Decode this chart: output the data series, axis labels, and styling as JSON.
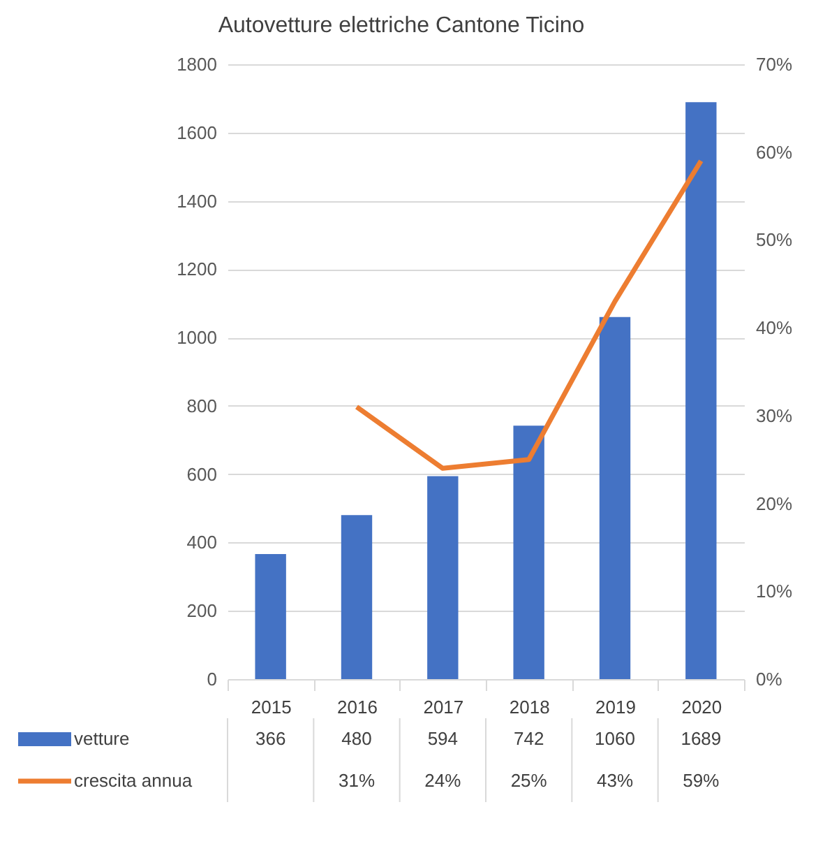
{
  "chart_data": {
    "type": "bar",
    "title": "Autovetture elettriche Cantone Ticino",
    "categories": [
      "2015",
      "2016",
      "2017",
      "2018",
      "2019",
      "2020"
    ],
    "series": [
      {
        "name": "vetture",
        "color": "#4472c4",
        "values": [
          366,
          480,
          594,
          742,
          1060,
          1689
        ],
        "value_labels": [
          "366",
          "480",
          "594",
          "742",
          "1060",
          "1689"
        ]
      },
      {
        "name": "crescita annua",
        "type": "line",
        "axis": "y2",
        "color": "#ed7d31",
        "values": [
          null,
          31,
          24,
          25,
          43,
          59
        ],
        "value_labels": [
          null,
          "31%",
          "24%",
          "25%",
          "43%",
          "59%"
        ]
      }
    ],
    "ylim": [
      0,
      1800
    ],
    "yticks": [
      0,
      200,
      400,
      600,
      800,
      1000,
      1200,
      1400,
      1600,
      1800
    ],
    "y2lim": [
      0,
      70
    ],
    "y2ticks": [
      {
        "value": 0,
        "label": "0%"
      },
      {
        "value": 10,
        "label": "10%"
      },
      {
        "value": 20,
        "label": "20%"
      },
      {
        "value": 30,
        "label": "30%"
      },
      {
        "value": 40,
        "label": "40%"
      },
      {
        "value": 50,
        "label": "50%"
      },
      {
        "value": 60,
        "label": "60%"
      },
      {
        "value": 70,
        "label": "70%"
      }
    ],
    "grid": "y",
    "legend": "bottom",
    "marker": "none"
  }
}
